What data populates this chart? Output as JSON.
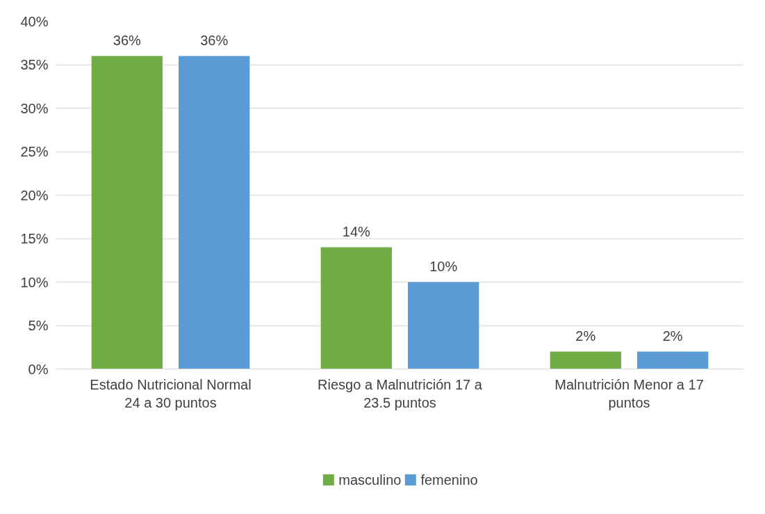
{
  "chart_data": {
    "type": "bar",
    "categories": [
      "Estado Nutricional Normal 24 a 30 puntos",
      "Riesgo a Malnutrición 17 a 23.5 puntos",
      "Malnutrición Menor a 17 puntos"
    ],
    "series": [
      {
        "name": "masculino",
        "color": "#70ad47",
        "values": [
          36,
          14,
          2
        ],
        "value_labels": [
          "36%",
          "14%",
          "2%"
        ]
      },
      {
        "name": "femenino",
        "color": "#5b9bd5",
        "values": [
          36,
          10,
          2
        ],
        "value_labels": [
          "36%",
          "10%",
          "2%"
        ]
      }
    ],
    "ylim": [
      0,
      40
    ],
    "yticks": [
      {
        "value": 0,
        "label": "0%"
      },
      {
        "value": 5,
        "label": "5%"
      },
      {
        "value": 10,
        "label": "10%"
      },
      {
        "value": 15,
        "label": "15%"
      },
      {
        "value": 20,
        "label": "20%"
      },
      {
        "value": 25,
        "label": "25%"
      },
      {
        "value": 30,
        "label": "30%"
      },
      {
        "value": 35,
        "label": "35%"
      },
      {
        "value": 40,
        "label": "40%"
      }
    ],
    "grid": "y",
    "legend": "bottom"
  }
}
